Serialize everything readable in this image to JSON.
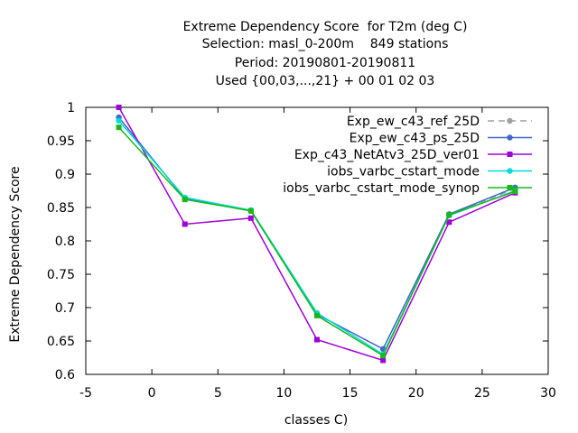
{
  "chart_data": {
    "type": "line",
    "title_lines": [
      "Extreme Dependency Score  for T2m (deg C)",
      "Selection: masl_0-200m    849 stations",
      "Period: 20190801-20190811",
      "Used {00,03,...,21} + 00 01 02 03"
    ],
    "xlabel": "classes C)",
    "ylabel": "Extreme Dependency Score",
    "xlim": [
      -5,
      30
    ],
    "ylim": [
      0.6,
      1.0
    ],
    "xticks": [
      -5,
      0,
      5,
      10,
      15,
      20,
      25,
      30
    ],
    "yticks": [
      0.6,
      0.65,
      0.7,
      0.75,
      0.8,
      0.85,
      0.9,
      0.95,
      1.0
    ],
    "ytick_labels": [
      "0.6",
      "0.65",
      "0.7",
      "0.75",
      "0.8",
      "0.85",
      "0.9",
      "0.95",
      "1"
    ],
    "grid": false,
    "legend_position": "top-right",
    "x": [
      -2.5,
      2.5,
      7.5,
      12.5,
      17.5,
      22.5,
      27.5
    ],
    "series": [
      {
        "name": "Exp_ew_c43_ref_25D",
        "color": "#a0a0a0",
        "dashed": true,
        "marker": "circle",
        "values": [
          0.985,
          0.863,
          0.845,
          0.69,
          0.638,
          0.84,
          0.878
        ]
      },
      {
        "name": "Exp_ew_c43_ps_25D",
        "color": "#4169c8",
        "dashed": false,
        "marker": "circle",
        "values": [
          0.985,
          0.863,
          0.845,
          0.69,
          0.638,
          0.84,
          0.88
        ]
      },
      {
        "name": "Exp_c43_NetAtv3_25D_ver01",
        "color": "#a000d8",
        "dashed": false,
        "marker": "square",
        "values": [
          1.0,
          0.825,
          0.834,
          0.652,
          0.621,
          0.828,
          0.872
        ]
      },
      {
        "name": "iobs_varbc_cstart_mode",
        "color": "#00dcdc",
        "dashed": false,
        "marker": "circle",
        "values": [
          0.98,
          0.865,
          0.846,
          0.692,
          0.63,
          0.838,
          0.875
        ]
      },
      {
        "name": "iobs_varbc_cstart_mode_synop",
        "color": "#18b818",
        "dashed": false,
        "marker": "square",
        "values": [
          0.97,
          0.862,
          0.845,
          0.688,
          0.628,
          0.839,
          0.874
        ]
      }
    ]
  }
}
